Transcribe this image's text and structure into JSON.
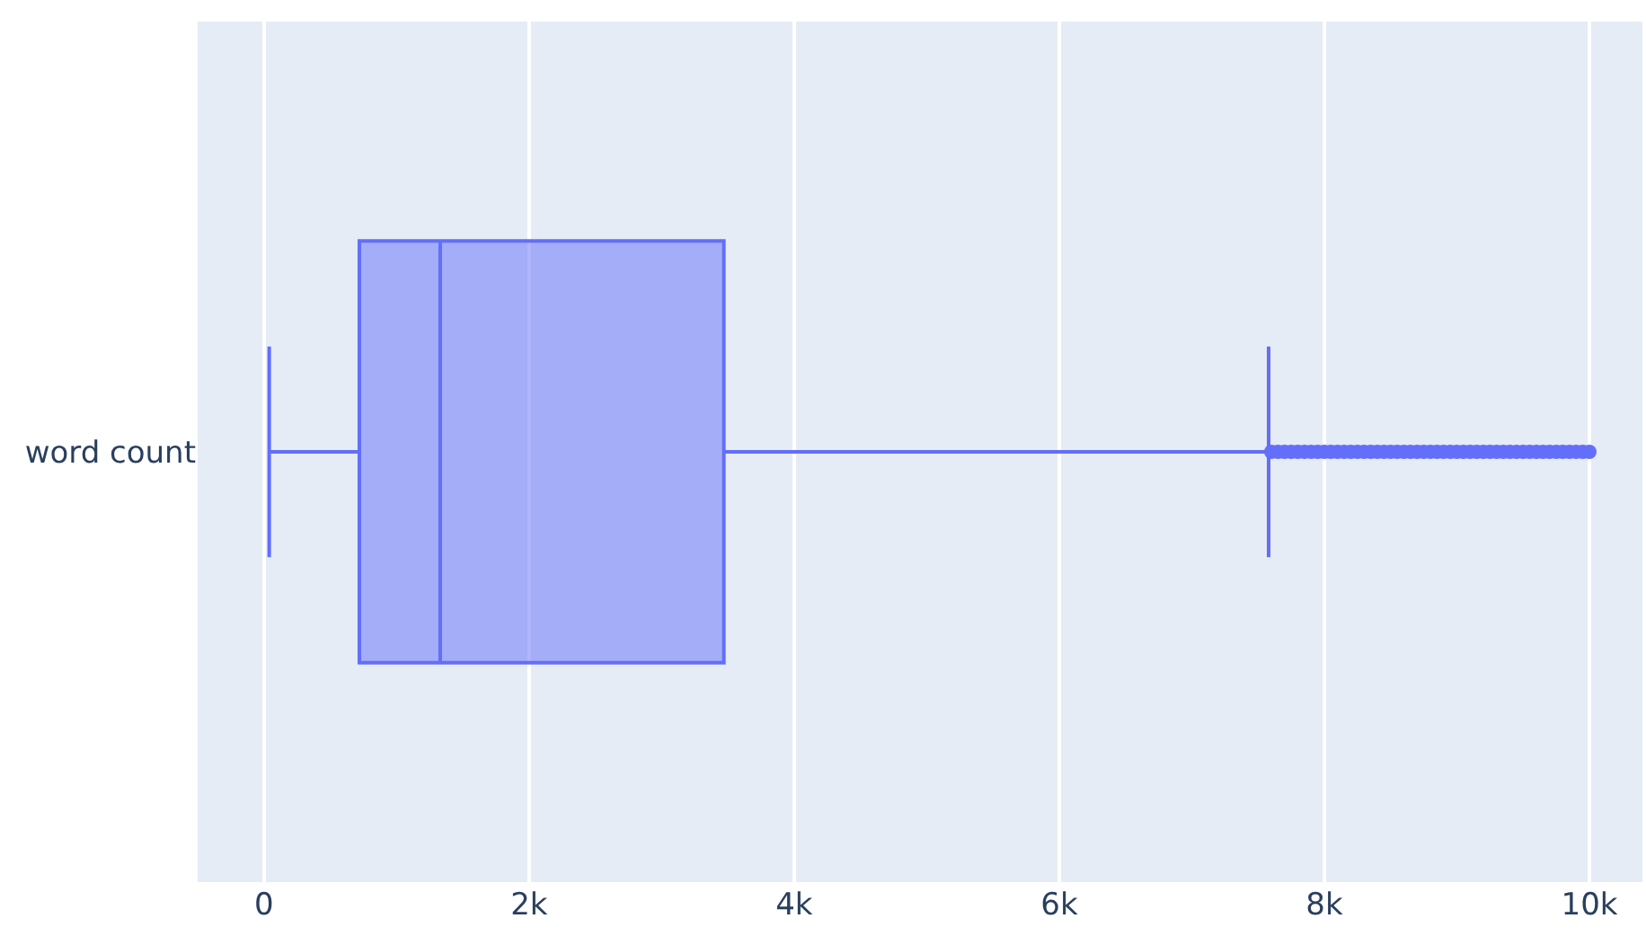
{
  "chart_data": {
    "type": "box",
    "orientation": "horizontal",
    "categories": [
      "word count"
    ],
    "series": [
      {
        "color": "#636efa",
        "boxes": [
          {
            "low": 40,
            "q1": 720,
            "median": 1330,
            "q3": 3470,
            "high": 7580,
            "outliers": [
              7600,
              7650,
              7700,
              7750,
              7800,
              7850,
              7900,
              7950,
              8000,
              8050,
              8100,
              8150,
              8200,
              8250,
              8300,
              8350,
              8400,
              8450,
              8500,
              8550,
              8600,
              8650,
              8700,
              8750,
              8800,
              8850,
              8900,
              8950,
              9000,
              9050,
              9100,
              9150,
              9200,
              9250,
              9300,
              9350,
              9400,
              9450,
              9500,
              9550,
              9600,
              9650,
              9700,
              9750,
              9800,
              9850,
              9900,
              9950,
              10000
            ]
          }
        ]
      }
    ],
    "xlim": [
      -500,
      10400
    ],
    "xticks": [
      0,
      {
        "value": 2000,
        "label": "2k"
      },
      {
        "value": 4000,
        "label": "4k"
      },
      {
        "value": 6000,
        "label": "6k"
      },
      {
        "value": 8000,
        "label": "8k"
      },
      {
        "value": 10000,
        "label": "10k"
      }
    ],
    "grid": "x"
  }
}
